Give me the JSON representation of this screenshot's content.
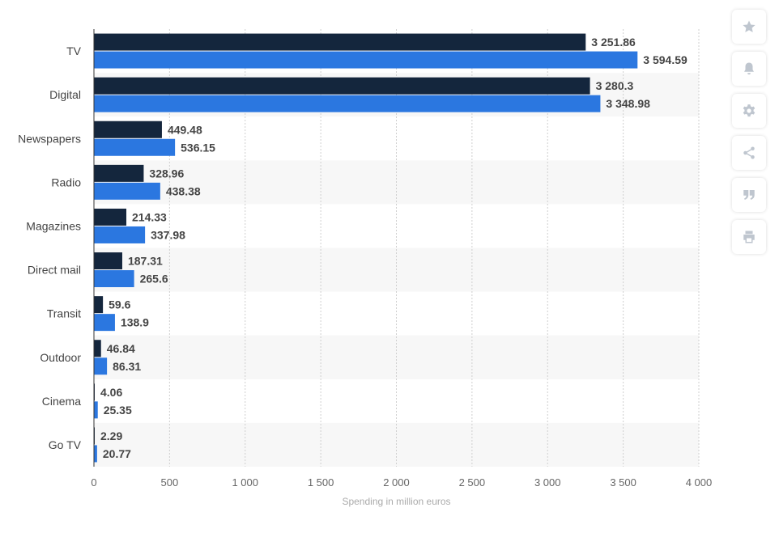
{
  "chart_data": {
    "type": "bar",
    "orientation": "horizontal",
    "categories": [
      "TV",
      "Digital",
      "Newspapers",
      "Radio",
      "Magazines",
      "Direct mail",
      "Transit",
      "Outdoor",
      "Cinema",
      "Go TV"
    ],
    "series": [
      {
        "color": "#14263d",
        "values": [
          3251.86,
          3280.3,
          449.48,
          328.96,
          214.33,
          187.31,
          59.6,
          46.84,
          4.06,
          2.29
        ],
        "labels": [
          "3 251.86",
          "3 280.3",
          "449.48",
          "328.96",
          "214.33",
          "187.31",
          "59.6",
          "46.84",
          "4.06",
          "2.29"
        ]
      },
      {
        "color": "#2b77e0",
        "values": [
          3594.59,
          3348.98,
          536.15,
          438.38,
          337.98,
          265.6,
          138.9,
          86.31,
          25.35,
          20.77
        ],
        "labels": [
          "3 594.59",
          "3 348.98",
          "536.15",
          "438.38",
          "337.98",
          "265.6",
          "138.9",
          "86.31",
          "25.35",
          "20.77"
        ]
      }
    ],
    "xlim": [
      0,
      4000
    ],
    "xticks": [
      0,
      500,
      1000,
      1500,
      2000,
      2500,
      3000,
      3500,
      4000
    ],
    "xtick_labels": [
      "0",
      "500",
      "1 000",
      "1 500",
      "2 000",
      "2 500",
      "3 000",
      "3 500",
      "4 000"
    ],
    "xlabel": "Spending in million euros",
    "grid": "vertical dotted",
    "legend": "none"
  },
  "toolbar": {
    "buttons": [
      {
        "name": "favorite-button",
        "icon": "star-icon"
      },
      {
        "name": "notification-button",
        "icon": "bell-icon"
      },
      {
        "name": "settings-button",
        "icon": "gear-icon"
      },
      {
        "name": "share-button",
        "icon": "share-icon"
      },
      {
        "name": "cite-button",
        "icon": "quote-icon"
      },
      {
        "name": "print-button",
        "icon": "printer-icon"
      }
    ],
    "icon_color": "#bfc6cf"
  }
}
